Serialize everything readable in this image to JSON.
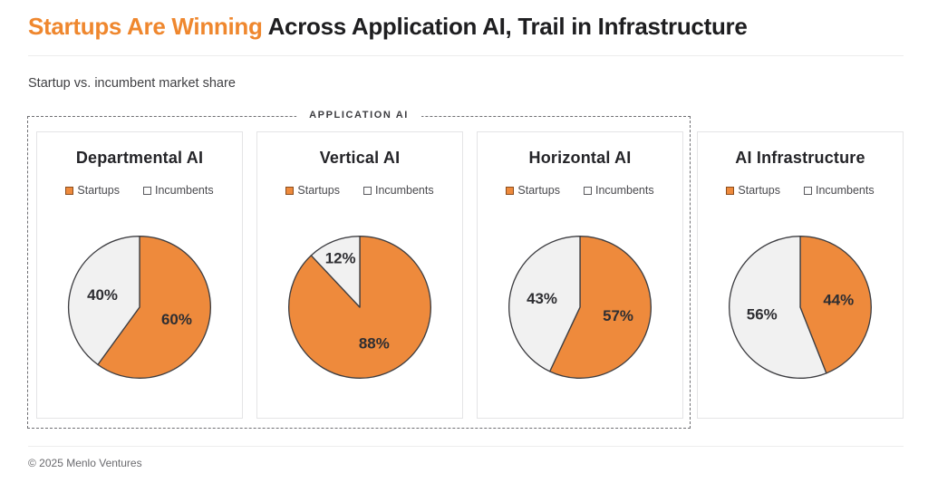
{
  "header": {
    "title_highlight": "Startups Are Winning",
    "title_rest": "Across Application AI, Trail in Infrastructure",
    "subtitle": "Startup vs. incumbent market share"
  },
  "group_label": "APPLICATION AI",
  "legend": {
    "startups": "Startups",
    "incumbents": "Incumbents"
  },
  "colors": {
    "startup_orange": "#EE8A3C",
    "incumbent_gray": "#F1F1F1",
    "slice_outline": "#3E3E42",
    "title_orange": "#EF872E"
  },
  "footer": {
    "copyright": "© 2025 Menlo Ventures"
  },
  "chart_data": [
    {
      "type": "pie",
      "title": "Departmental AI",
      "legend": [
        "Startups",
        "Incumbents"
      ],
      "series": [
        {
          "name": "Startups",
          "value": 60,
          "label": "60%"
        },
        {
          "name": "Incumbents",
          "value": 40,
          "label": "40%"
        }
      ]
    },
    {
      "type": "pie",
      "title": "Vertical AI",
      "legend": [
        "Startups",
        "Incumbents"
      ],
      "series": [
        {
          "name": "Startups",
          "value": 88,
          "label": "88%"
        },
        {
          "name": "Incumbents",
          "value": 12,
          "label": "12%"
        }
      ]
    },
    {
      "type": "pie",
      "title": "Horizontal AI",
      "legend": [
        "Startups",
        "Incumbents"
      ],
      "series": [
        {
          "name": "Startups",
          "value": 57,
          "label": "57%"
        },
        {
          "name": "Incumbents",
          "value": 43,
          "label": "43%"
        }
      ]
    },
    {
      "type": "pie",
      "title": "AI Infrastructure",
      "legend": [
        "Startups",
        "Incumbents"
      ],
      "series": [
        {
          "name": "Startups",
          "value": 44,
          "label": "44%"
        },
        {
          "name": "Incumbents",
          "value": 56,
          "label": "56%"
        }
      ]
    }
  ]
}
